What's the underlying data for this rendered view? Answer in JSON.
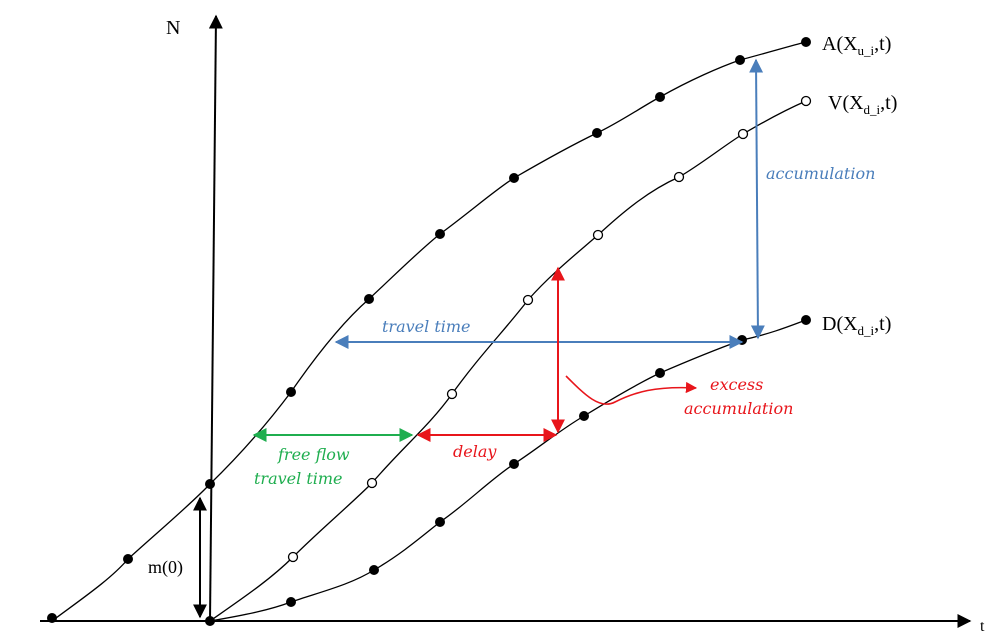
{
  "axes": {
    "y_label": "N",
    "x_label": "t"
  },
  "curves": {
    "A": {
      "prefix": "A(X",
      "sub": "u_i",
      "suffix": ",t)"
    },
    "V": {
      "prefix": "V(X",
      "sub": "d_i",
      "suffix": ",t)"
    },
    "D": {
      "prefix": "D(X",
      "sub": "d_i",
      "suffix": ",t)"
    }
  },
  "annotations": {
    "accumulation": "accumulation",
    "travel_time": "travel time",
    "excess_line1": "excess",
    "excess_line2": "accumulation",
    "delay": "delay",
    "free_flow_line1": "free flow",
    "free_flow_line2": "travel time",
    "initial": "m(0)"
  },
  "colors": {
    "axis": "#000000",
    "curve": "#000000",
    "accumulation": "#4a7ebb",
    "travel_time": "#4a7ebb",
    "delay": "#e8151b",
    "excess": "#e8151b",
    "free_flow": "#1fae4f",
    "initial": "#000000"
  }
}
